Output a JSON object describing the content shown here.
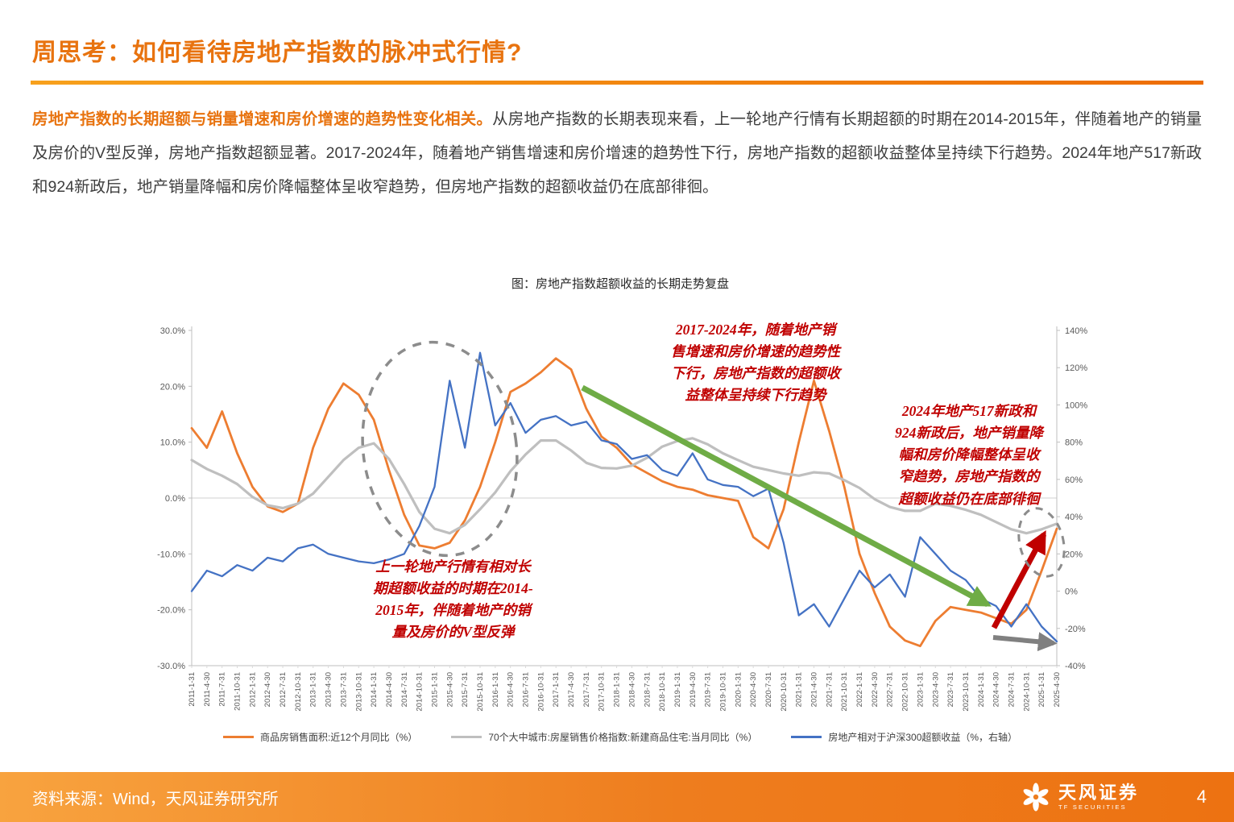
{
  "page": {
    "title": "周思考：如何看待房地产指数的脉冲式行情?",
    "paragraph_lead": "房地产指数的长期超额与销量增速和房价增速的趋势性变化相关。",
    "paragraph_body": "从房地产指数的长期表现来看，上一轮地产行情有长期超额的时期在2014-2015年，伴随着地产的销量及房价的V型反弹，房地产指数超额显著。2017-2024年，随着地产销售增速和房价增速的趋势性下行，房地产指数的超额收益整体呈持续下行趋势。2024年地产517新政和924新政后，地产销量降幅和房价降幅整体呈收窄趋势，但房地产指数的超额收益仍在底部徘徊。",
    "page_number": "4"
  },
  "footer": {
    "source": "资料来源：Wind，天风证券研究所",
    "brand": "天风证券",
    "brand_sub": "TF SECURITIES"
  },
  "theme": {
    "accent_orange": "#E8730F",
    "annotation_red": "#C00000",
    "arrow_green": "#6FAC46",
    "arrow_red": "#C00000",
    "arrow_gray": "#808080",
    "series_orange": "#ED7D31",
    "series_gray": "#BFBFBF",
    "series_blue": "#4472C4"
  },
  "annotations": {
    "downtrend": {
      "text": "2017-2024年，随着地产销\n售增速和房价增速的趋势性\n下行，房地产指数的超额收\n益整体呈持续下行趋势"
    },
    "policy": {
      "text": "2024年地产517新政和\n924新政后，地产销量降\n幅和房价降幅整体呈收\n窄趋势，房地产指数的\n超额收益仍在底部徘徊"
    },
    "vshape": {
      "text": "上一轮地产行情有相对长\n期超额收益的时期在2014-\n2015年，伴随着地产的销\n量及房价的V型反弹"
    }
  },
  "chart_data": {
    "type": "line",
    "title": "图：房地产指数超额收益的长期走势复盘",
    "grid": false,
    "legend_position": "bottom",
    "left_axis": {
      "min": -30,
      "max": 30,
      "tick_step": 10,
      "format": "0.0%"
    },
    "right_axis": {
      "min": -40,
      "max": 140,
      "tick_step": 20,
      "format": "0%"
    },
    "categories": [
      "2011-1-31",
      "2011-4-30",
      "2011-7-31",
      "2011-10-31",
      "2012-1-31",
      "2012-4-30",
      "2012-7-31",
      "2012-10-31",
      "2013-1-31",
      "2013-4-30",
      "2013-7-31",
      "2013-10-31",
      "2014-1-31",
      "2014-4-30",
      "2014-7-31",
      "2014-10-31",
      "2015-1-31",
      "2015-4-30",
      "2015-7-31",
      "2015-10-31",
      "2016-1-31",
      "2016-4-30",
      "2016-7-31",
      "2016-10-31",
      "2017-1-31",
      "2017-4-30",
      "2017-7-31",
      "2017-10-31",
      "2018-1-31",
      "2018-4-30",
      "2018-7-31",
      "2018-10-31",
      "2019-1-31",
      "2019-4-30",
      "2019-7-31",
      "2019-10-31",
      "2020-1-31",
      "2020-4-30",
      "2020-7-31",
      "2020-10-31",
      "2021-1-31",
      "2021-4-30",
      "2021-7-31",
      "2021-10-31",
      "2022-1-31",
      "2022-4-30",
      "2022-7-31",
      "2022-10-31",
      "2023-1-31",
      "2023-4-30",
      "2023-7-31",
      "2023-10-31",
      "2024-1-31",
      "2024-4-30",
      "2024-7-31",
      "2024-10-31",
      "2025-1-31",
      "2025-4-30"
    ],
    "series": [
      {
        "name": "商品房销售面积:近12个月同比（%）",
        "axis": "left",
        "color": "#ED7D31",
        "width": 2.8,
        "values": [
          12.5,
          9.0,
          15.5,
          8.0,
          2.0,
          -1.5,
          -2.5,
          -1.0,
          9.0,
          16.0,
          20.5,
          18.5,
          14.0,
          5.0,
          -3.0,
          -8.5,
          -9.0,
          -8.0,
          -4.0,
          2.0,
          10.0,
          19.0,
          20.5,
          22.5,
          25.0,
          23.0,
          16.0,
          11.0,
          9.0,
          6.0,
          4.5,
          3.0,
          2.0,
          1.5,
          0.5,
          0.0,
          -0.5,
          -7.0,
          -9.0,
          -2.0,
          10.0,
          21.0,
          12.0,
          2.0,
          -10.0,
          -17.0,
          -23.0,
          -25.5,
          -26.5,
          -22.0,
          -19.5,
          -20.0,
          -20.5,
          -21.5,
          -22.5,
          -20.0,
          -13.0,
          -5.5
        ]
      },
      {
        "name": "70个大中城市:房屋销售价格指数:新建商品住宅:当月同比（%）",
        "axis": "left",
        "color": "#BFBFBF",
        "width": 3.2,
        "values": [
          6.8,
          5.2,
          4.0,
          2.5,
          0.2,
          -1.3,
          -1.8,
          -1.0,
          0.8,
          3.8,
          6.8,
          9.0,
          9.8,
          7.0,
          2.5,
          -2.5,
          -5.5,
          -6.3,
          -4.8,
          -2.0,
          1.0,
          4.8,
          7.8,
          10.3,
          10.3,
          8.5,
          6.3,
          5.4,
          5.3,
          5.8,
          7.2,
          9.2,
          10.2,
          10.7,
          9.6,
          8.0,
          6.8,
          5.6,
          5.0,
          4.4,
          4.0,
          4.6,
          4.4,
          3.2,
          1.8,
          -0.2,
          -1.6,
          -2.3,
          -2.3,
          -1.0,
          -1.4,
          -2.1,
          -3.0,
          -4.3,
          -5.6,
          -6.3,
          -5.6,
          -4.6
        ]
      },
      {
        "name": "房地产相对于沪深300超额收益（%，右轴）",
        "axis": "right",
        "color": "#4472C4",
        "width": 2.3,
        "values": [
          0,
          11,
          8,
          14,
          11,
          18,
          16,
          23,
          25,
          20,
          18,
          16,
          15,
          17,
          20,
          35,
          56,
          113,
          77,
          128,
          89,
          101,
          85,
          92,
          94,
          89,
          91,
          81,
          79,
          71,
          73,
          65,
          62,
          74,
          60,
          57,
          56,
          51,
          55,
          26,
          -13,
          -7,
          -19,
          -4,
          11,
          2,
          9,
          -3,
          29,
          20,
          11,
          6,
          -4,
          -8,
          -19,
          -7,
          -19,
          -27
        ]
      }
    ]
  }
}
